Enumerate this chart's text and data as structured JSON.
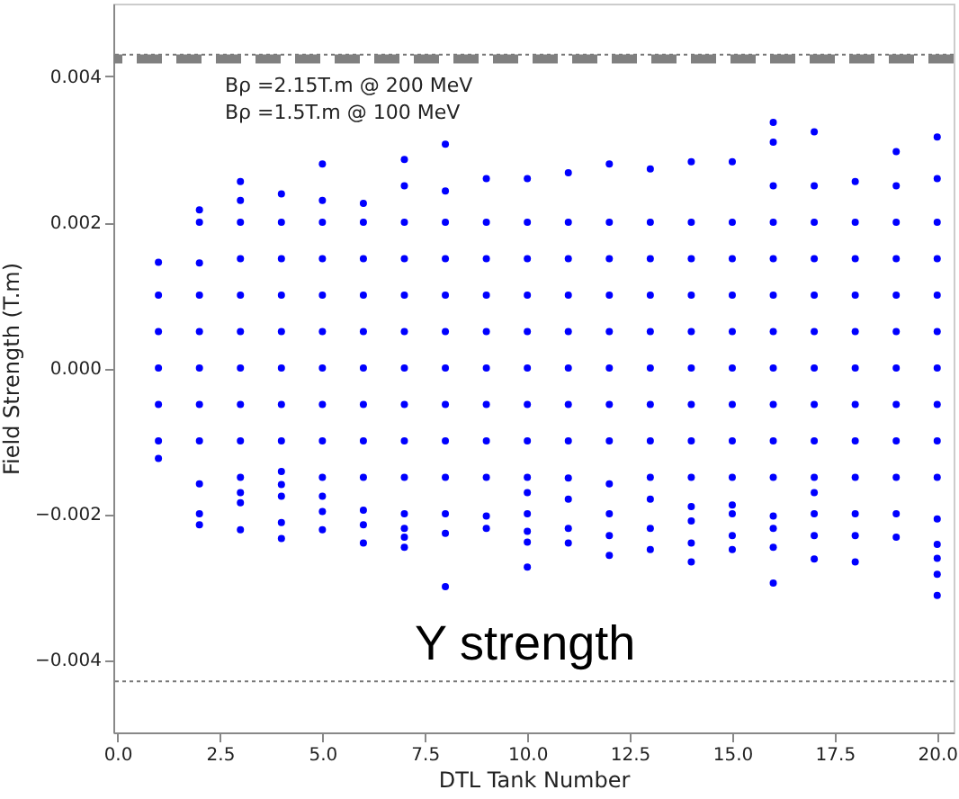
{
  "chart_data": {
    "type": "scatter",
    "xlabel": "DTL Tank Number",
    "ylabel": "Field Strength (T.m)",
    "xlim": [
      -0.1,
      20.4
    ],
    "ylim": [
      -0.005,
      0.005
    ],
    "xticks": [
      {
        "value": 0,
        "label": "0.0"
      },
      {
        "value": 2.5,
        "label": "2.5"
      },
      {
        "value": 5,
        "label": "5.0"
      },
      {
        "value": 7.5,
        "label": "7.5"
      },
      {
        "value": 10,
        "label": "10.0"
      },
      {
        "value": 12.5,
        "label": "12.5"
      },
      {
        "value": 15,
        "label": "15.0"
      },
      {
        "value": 17.5,
        "label": "17.5"
      },
      {
        "value": 20,
        "label": "20.0"
      }
    ],
    "yticks": [
      {
        "value": -0.004,
        "label": "−0.004"
      },
      {
        "value": -0.002,
        "label": "−0.002"
      },
      {
        "value": 0,
        "label": "0.000"
      },
      {
        "value": 0.002,
        "label": "0.002"
      },
      {
        "value": 0.004,
        "label": "0.004"
      }
    ],
    "grid": false,
    "marker": "circle",
    "annotations": [
      "Bρ =2.15T.m @ 200 MeV",
      "Bρ =1.5T.m @ 100 MeV",
      "Y strength"
    ],
    "ref_lines": [
      {
        "axis": "y",
        "value": 0.0043,
        "color": "#777777",
        "line_style": "dotted"
      },
      {
        "axis": "y",
        "value": -0.0043,
        "color": "#777777",
        "line_style": "dotted"
      },
      {
        "axis": "y",
        "value": 0.00424,
        "color": "#808080",
        "line_style": "dashed"
      }
    ],
    "series": [
      {
        "color": "#0000ff",
        "x": [
          1,
          1,
          1,
          1,
          1,
          1,
          1,
          2,
          2,
          2,
          2,
          2,
          2,
          2,
          2,
          2,
          2,
          2,
          3,
          3,
          3,
          3,
          3,
          3,
          3,
          3,
          3,
          3,
          3,
          3,
          3,
          4,
          4,
          4,
          4,
          4,
          4,
          4,
          4,
          4,
          4,
          4,
          4,
          4,
          5,
          5,
          5,
          5,
          5,
          5,
          5,
          5,
          5,
          5,
          5,
          5,
          5,
          6,
          6,
          6,
          6,
          6,
          6,
          6,
          6,
          6,
          6,
          6,
          6,
          7,
          7,
          7,
          7,
          7,
          7,
          7,
          7,
          7,
          7,
          7,
          7,
          7,
          7,
          8,
          8,
          8,
          8,
          8,
          8,
          8,
          8,
          8,
          8,
          8,
          8,
          8,
          9,
          9,
          9,
          9,
          9,
          9,
          9,
          9,
          9,
          9,
          9,
          10,
          10,
          10,
          10,
          10,
          10,
          10,
          10,
          10,
          10,
          10,
          10,
          10,
          10,
          11,
          11,
          11,
          11,
          11,
          11,
          11,
          11,
          11,
          11,
          11,
          11,
          12,
          12,
          12,
          12,
          12,
          12,
          12,
          12,
          12,
          12,
          12,
          12,
          13,
          13,
          13,
          13,
          13,
          13,
          13,
          13,
          13,
          13,
          13,
          13,
          14,
          14,
          14,
          14,
          14,
          14,
          14,
          14,
          14,
          14,
          14,
          14,
          14,
          15,
          15,
          15,
          15,
          15,
          15,
          15,
          15,
          15,
          15,
          15,
          15,
          15,
          16,
          16,
          16,
          16,
          16,
          16,
          16,
          16,
          16,
          16,
          16,
          16,
          16,
          16,
          16,
          17,
          17,
          17,
          17,
          17,
          17,
          17,
          17,
          17,
          17,
          17,
          17,
          17,
          17,
          18,
          18,
          18,
          18,
          18,
          18,
          18,
          18,
          18,
          18,
          18,
          18,
          19,
          19,
          19,
          19,
          19,
          19,
          19,
          19,
          19,
          19,
          19,
          19,
          20,
          20,
          20,
          20,
          20,
          20,
          20,
          20,
          20,
          20,
          20,
          20,
          20,
          20,
          20
        ],
        "values": [
          0.00145,
          0.001,
          0.0005,
          0,
          -0.0005,
          -0.001,
          -0.00124,
          0.00217,
          0.002,
          0.00144,
          0.001,
          0.0005,
          0,
          -0.0005,
          -0.001,
          -0.00159,
          -0.002,
          -0.00215,
          0.00256,
          0.0023,
          0.002,
          0.0015,
          0.001,
          0.0005,
          0,
          -0.0005,
          -0.001,
          -0.0015,
          -0.00171,
          -0.00185,
          -0.00222,
          0.00239,
          0.002,
          0.0015,
          0.001,
          0.0005,
          0,
          -0.0005,
          -0.001,
          -0.00142,
          -0.0016,
          -0.00176,
          -0.00212,
          -0.00234,
          0.0028,
          0.0023,
          0.002,
          0.0015,
          0.001,
          0.0005,
          0,
          -0.0005,
          -0.001,
          -0.0015,
          -0.00176,
          -0.00197,
          -0.00222,
          0.00226,
          0.002,
          0.0015,
          0.001,
          0.0005,
          0,
          -0.0005,
          -0.001,
          -0.0015,
          -0.00195,
          -0.00215,
          -0.0024,
          0.00286,
          0.0025,
          0.002,
          0.0015,
          0.001,
          0.0005,
          0,
          -0.0005,
          -0.001,
          -0.0015,
          -0.002,
          -0.0022,
          -0.00232,
          -0.00246,
          0.00307,
          0.00243,
          0.002,
          0.0015,
          0.001,
          0.0005,
          0,
          -0.0005,
          -0.001,
          -0.0015,
          -0.002,
          -0.00227,
          -0.003,
          0.0026,
          0.002,
          0.0015,
          0.001,
          0.0005,
          0,
          -0.0005,
          -0.001,
          -0.0015,
          -0.00203,
          -0.0022,
          0.0026,
          0.002,
          0.0015,
          0.001,
          0.0005,
          0,
          -0.0005,
          -0.001,
          -0.0015,
          -0.00171,
          -0.002,
          -0.00224,
          -0.00239,
          -0.00273,
          0.00268,
          0.002,
          0.0015,
          0.001,
          0.0005,
          0,
          -0.0005,
          -0.001,
          -0.00151,
          -0.0018,
          -0.0022,
          -0.0024,
          0.0028,
          0.002,
          0.0015,
          0.001,
          0.0005,
          0,
          -0.0005,
          -0.001,
          -0.00159,
          -0.002,
          -0.0023,
          -0.00257,
          0.00273,
          0.002,
          0.0015,
          0.001,
          0.0005,
          0,
          -0.0005,
          -0.001,
          -0.0015,
          -0.0018,
          -0.0022,
          -0.00249,
          0.00283,
          0.002,
          0.0015,
          0.001,
          0.0005,
          0,
          -0.0005,
          -0.001,
          -0.0015,
          -0.0019,
          -0.0021,
          -0.0024,
          -0.00266,
          0.00283,
          0.002,
          0.0015,
          0.001,
          0.0005,
          0,
          -0.0005,
          -0.001,
          -0.0015,
          -0.00188,
          -0.002,
          -0.0023,
          -0.00249,
          0.00337,
          0.0031,
          0.0025,
          0.002,
          0.0015,
          0.001,
          0.0005,
          0,
          -0.0005,
          -0.001,
          -0.0015,
          -0.00203,
          -0.0022,
          -0.00246,
          -0.00295,
          0.00324,
          0.0025,
          0.002,
          0.0015,
          0.001,
          0.0005,
          0,
          -0.0005,
          -0.001,
          -0.0015,
          -0.00171,
          -0.002,
          -0.0023,
          -0.00262,
          0.00256,
          0.002,
          0.0015,
          0.001,
          0.0005,
          0,
          -0.0005,
          -0.001,
          -0.0015,
          -0.002,
          -0.0023,
          -0.00266,
          0.00297,
          0.0025,
          0.002,
          0.0015,
          0.001,
          0.0005,
          0,
          -0.0005,
          -0.001,
          -0.0015,
          -0.002,
          -0.00232,
          0.00317,
          0.0026,
          0.002,
          0.0015,
          0.001,
          0.0005,
          0,
          -0.0005,
          -0.001,
          -0.0015,
          -0.00207,
          -0.00242,
          -0.00261,
          -0.00283,
          -0.00312
        ]
      }
    ]
  }
}
